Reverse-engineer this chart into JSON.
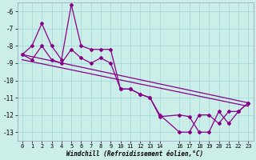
{
  "xlabel": "Windchill (Refroidissement éolien,°C)",
  "background_color": "#cceee8",
  "grid_color": "#aadddd",
  "line_color": "#880088",
  "ylim": [
    -13.5,
    -5.5
  ],
  "xlim": [
    -0.5,
    23.5
  ],
  "yticks": [
    -13,
    -12,
    -11,
    -10,
    -9,
    -8,
    -7,
    -6
  ],
  "xticks": [
    0,
    1,
    2,
    3,
    4,
    5,
    6,
    7,
    8,
    9,
    10,
    11,
    12,
    13,
    14,
    16,
    17,
    18,
    19,
    20,
    21,
    22,
    23
  ],
  "series1_x": [
    0,
    1,
    2,
    3,
    4,
    5,
    6,
    7,
    8,
    9,
    10,
    11,
    12,
    13,
    14,
    16,
    17,
    18,
    19,
    20,
    21,
    22,
    23
  ],
  "series1_y": [
    -8.5,
    -8.0,
    -6.7,
    -8.0,
    -8.8,
    -5.6,
    -8.0,
    -8.2,
    -8.2,
    -8.2,
    -10.5,
    -10.5,
    -10.8,
    -11.0,
    -12.1,
    -12.0,
    -12.1,
    -13.0,
    -13.0,
    -11.8,
    -12.5,
    -11.8,
    -11.3
  ],
  "series2_x": [
    0,
    1,
    2,
    3,
    4,
    5,
    6,
    7,
    8,
    9,
    10,
    11,
    12,
    13,
    14,
    16,
    17,
    18,
    19,
    20,
    21,
    22,
    23
  ],
  "series2_y": [
    -8.5,
    -8.8,
    -8.0,
    -8.8,
    -9.0,
    -8.2,
    -8.7,
    -9.0,
    -8.7,
    -9.0,
    -10.5,
    -10.5,
    -10.8,
    -11.0,
    -12.0,
    -13.0,
    -13.0,
    -12.0,
    -12.0,
    -12.5,
    -11.8,
    -11.8,
    -11.3
  ],
  "series3_x": [
    0,
    23
  ],
  "series3_y": [
    -8.5,
    -11.3
  ],
  "series4_x": [
    0,
    23
  ],
  "series4_y": [
    -8.8,
    -11.5
  ]
}
